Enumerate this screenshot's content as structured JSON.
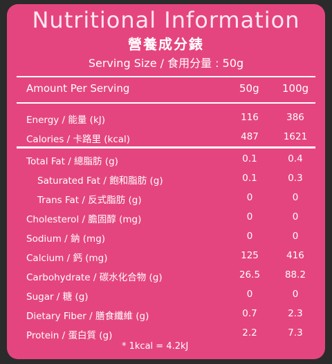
{
  "header": {
    "title": "Nutritional Information",
    "subtitle": "營養成分錶",
    "serving": "Serving Size / 食用分量 : 50g"
  },
  "columns": {
    "label": "Amount Per Serving",
    "col1": "50g",
    "col2": "100g"
  },
  "rows": [
    {
      "label": "Energy / 能量 (kJ)",
      "v1": "116",
      "v2": "386"
    },
    {
      "label": "Calories / 卡路里 (kcal)",
      "v1": "487",
      "v2": "1621"
    },
    {
      "label": "Total Fat / 總脂肪 (g)",
      "v1": "0.1",
      "v2": "0.4"
    },
    {
      "label": "Saturated Fat / 飽和脂肪 (g)",
      "v1": "0.1",
      "v2": "0.3"
    },
    {
      "label": "Trans Fat / 反式脂肪 (g)",
      "v1": "0",
      "v2": "0"
    },
    {
      "label": "Cholesterol / 膽固醇 (mg)",
      "v1": "0",
      "v2": "0"
    },
    {
      "label": "Sodium / 鈉 (mg)",
      "v1": "0",
      "v2": "0"
    },
    {
      "label": "Calcium / 鈣 (mg)",
      "v1": "125",
      "v2": "416"
    },
    {
      "label": "Carbohydrate / 碳水化合物 (g)",
      "v1": "26.5",
      "v2": "88.2"
    },
    {
      "label": "Sugar / 糖 (g)",
      "v1": "0",
      "v2": "0"
    },
    {
      "label": "Dietary Fiber / 膳食纖維 (g)",
      "v1": "0.7",
      "v2": "2.3"
    },
    {
      "label": "Protein / 蛋白質 (g)",
      "v1": "2.2",
      "v2": "7.3"
    }
  ],
  "footnote": "* 1kcal = 4.2kJ",
  "colors": {
    "background": "#e5457e",
    "text": "#ffffff"
  }
}
